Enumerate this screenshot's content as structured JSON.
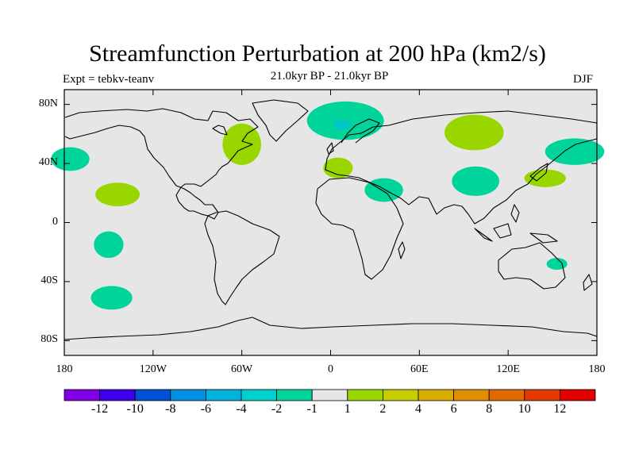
{
  "title": "Streamfunction Perturbation at 200 hPa (km2/s)",
  "experiment_label": "Expt = tebkv-teanv",
  "period_label": "21.0kyr BP - 21.0kyr BP",
  "season_label": "DJF",
  "map": {
    "projection": "cylindrical equidistant",
    "lon_range": [
      -180,
      180
    ],
    "lat_range": [
      -90,
      90
    ],
    "background_color": "#e6e6e6",
    "lat_ticks": [
      {
        "value": 80,
        "label": "80N"
      },
      {
        "value": 40,
        "label": "40N"
      },
      {
        "value": 0,
        "label": "0"
      },
      {
        "value": -40,
        "label": "40S"
      },
      {
        "value": -80,
        "label": "80S"
      }
    ],
    "lon_ticks": [
      {
        "value": -180,
        "label": "180"
      },
      {
        "value": -120,
        "label": "120W"
      },
      {
        "value": -60,
        "label": "60W"
      },
      {
        "value": 0,
        "label": "0"
      },
      {
        "value": 60,
        "label": "60E"
      },
      {
        "value": 120,
        "label": "120E"
      },
      {
        "value": 180,
        "label": "180"
      }
    ]
  },
  "anomaly_patches": [
    {
      "name": "n-pacific-west",
      "level": -1.5,
      "color": "#00d49a",
      "lon": -176,
      "lat": 43,
      "rlon": 13,
      "rlat": 8
    },
    {
      "name": "pacific-subtropic",
      "level": 1.5,
      "color": "#99d600",
      "lon": -144,
      "lat": 19,
      "rlon": 15,
      "rlat": 8
    },
    {
      "name": "s-pacific-1",
      "level": -1.5,
      "color": "#00d49a",
      "lon": -150,
      "lat": -15,
      "rlon": 10,
      "rlat": 9
    },
    {
      "name": "s-pacific-2",
      "level": -1.5,
      "color": "#00d49a",
      "lon": -148,
      "lat": -51,
      "rlon": 14,
      "rlat": 8
    },
    {
      "name": "n-america-east",
      "level": 1.5,
      "color": "#99d600",
      "lon": -60,
      "lat": 53,
      "rlon": 13,
      "rlat": 14
    },
    {
      "name": "nw-europe",
      "level": -1.5,
      "color": "#00d49a",
      "lon": 10,
      "lat": 69,
      "rlon": 26,
      "rlat": 13
    },
    {
      "name": "scandinavia-core",
      "level": -3,
      "color": "#00c4c8",
      "lon": 8,
      "lat": 66,
      "rlon": 6,
      "rlat": 3
    },
    {
      "name": "mediterranean",
      "level": 1.5,
      "color": "#99d600",
      "lon": 5,
      "lat": 37,
      "rlon": 10,
      "rlat": 7
    },
    {
      "name": "n-africa-arabia",
      "level": -1.5,
      "color": "#00d49a",
      "lon": 36,
      "lat": 22,
      "rlon": 13,
      "rlat": 8
    },
    {
      "name": "siberia",
      "level": 1.5,
      "color": "#99d600",
      "lon": 97,
      "lat": 61,
      "rlon": 20,
      "rlat": 12
    },
    {
      "name": "tibet-se-asia",
      "level": -1.5,
      "color": "#00d49a",
      "lon": 98,
      "lat": 28,
      "rlon": 16,
      "rlat": 10
    },
    {
      "name": "japan-east",
      "level": 1.5,
      "color": "#99d600",
      "lon": 145,
      "lat": 30,
      "rlon": 14,
      "rlat": 6
    },
    {
      "name": "ne-asia",
      "level": -1.5,
      "color": "#00d49a",
      "lon": 165,
      "lat": 48,
      "rlon": 20,
      "rlat": 9
    },
    {
      "name": "australia-east",
      "level": -1.5,
      "color": "#00d49a",
      "lon": 153,
      "lat": -28,
      "rlon": 7,
      "rlat": 4
    }
  ],
  "colorbar": {
    "colors": [
      "#8100e6",
      "#3d00e6",
      "#0051d4",
      "#008fe0",
      "#00b2dd",
      "#00d0cc",
      "#00d49a",
      "#e6e6e6",
      "#99d600",
      "#c7cc00",
      "#d9ad00",
      "#e08e00",
      "#e06a00",
      "#e03a00",
      "#e00000"
    ],
    "labels": [
      "-12",
      "-10",
      "-8",
      "-6",
      "-4",
      "-2",
      "-1",
      "1",
      "2",
      "4",
      "6",
      "8",
      "10",
      "12"
    ]
  }
}
